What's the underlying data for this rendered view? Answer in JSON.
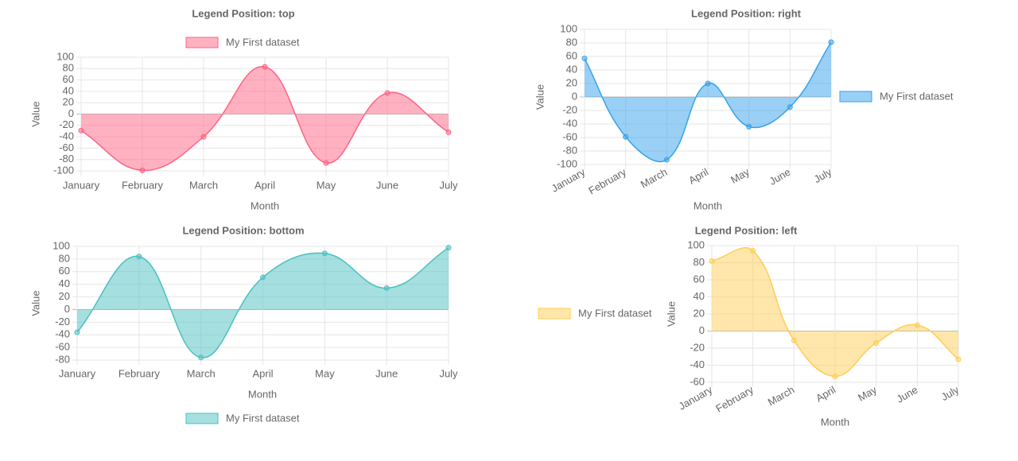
{
  "chart_data": [
    {
      "type": "line",
      "title": "Legend Position: top",
      "legend_position": "top",
      "categories": [
        "January",
        "February",
        "March",
        "April",
        "May",
        "June",
        "July"
      ],
      "series": [
        {
          "name": "My First dataset",
          "color": "#ff6384",
          "values": [
            -29,
            -99,
            -40,
            83,
            -86,
            37,
            -32
          ]
        }
      ],
      "x_label": "Month",
      "y_label": "Value",
      "ylim": [
        -100,
        100
      ],
      "yticks": [
        -100,
        -80,
        -60,
        -40,
        -20,
        0,
        20,
        40,
        60,
        80,
        100
      ],
      "grid": true
    },
    {
      "type": "line",
      "title": "Legend Position: right",
      "legend_position": "right",
      "categories": [
        "January",
        "February",
        "March",
        "April",
        "May",
        "June",
        "July"
      ],
      "series": [
        {
          "name": "My First dataset",
          "color": "#36a2eb",
          "values": [
            57,
            -59,
            -93,
            20,
            -44,
            -15,
            81
          ]
        }
      ],
      "x_label": "Month",
      "y_label": "Value",
      "ylim": [
        -100,
        100
      ],
      "yticks": [
        -100,
        -80,
        -60,
        -40,
        -20,
        0,
        20,
        40,
        60,
        80,
        100
      ],
      "grid": true
    },
    {
      "type": "line",
      "title": "Legend Position: bottom",
      "legend_position": "bottom",
      "categories": [
        "January",
        "February",
        "March",
        "April",
        "May",
        "June",
        "July"
      ],
      "series": [
        {
          "name": "My First dataset",
          "color": "#4bc0c0",
          "values": [
            -36,
            84,
            -76,
            51,
            89,
            34,
            98
          ]
        }
      ],
      "x_label": "Month",
      "y_label": "Value",
      "ylim": [
        -80,
        100
      ],
      "yticks": [
        -80,
        -60,
        -40,
        -20,
        0,
        20,
        40,
        60,
        80,
        100
      ],
      "grid": true
    },
    {
      "type": "line",
      "title": "Legend Position: left",
      "legend_position": "left",
      "categories": [
        "January",
        "February",
        "March",
        "April",
        "May",
        "June",
        "July"
      ],
      "series": [
        {
          "name": "My First dataset",
          "color": "#ffcd56",
          "values": [
            82,
            94,
            -11,
            -53,
            -14,
            7,
            -33
          ]
        }
      ],
      "x_label": "Month",
      "y_label": "Value",
      "ylim": [
        -60,
        100
      ],
      "yticks": [
        -60,
        -40,
        -20,
        0,
        20,
        40,
        60,
        80,
        100
      ],
      "grid": true
    }
  ]
}
